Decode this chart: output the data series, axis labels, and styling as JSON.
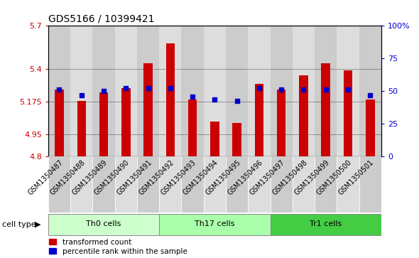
{
  "title": "GDS5166 / 10399421",
  "samples": [
    "GSM1350487",
    "GSM1350488",
    "GSM1350489",
    "GSM1350490",
    "GSM1350491",
    "GSM1350492",
    "GSM1350493",
    "GSM1350494",
    "GSM1350495",
    "GSM1350496",
    "GSM1350497",
    "GSM1350498",
    "GSM1350499",
    "GSM1350500",
    "GSM1350501"
  ],
  "bar_values": [
    5.26,
    5.18,
    5.24,
    5.27,
    5.44,
    5.58,
    5.19,
    5.04,
    5.03,
    5.3,
    5.26,
    5.36,
    5.44,
    5.39,
    5.19
  ],
  "blue_values": [
    5.26,
    5.22,
    5.25,
    5.27,
    5.27,
    5.27,
    5.21,
    5.19,
    5.18,
    5.27,
    5.26,
    5.26,
    5.26,
    5.26,
    5.22
  ],
  "groups": [
    {
      "label": "Th0 cells",
      "start": 0,
      "end": 5,
      "color": "#ccffcc"
    },
    {
      "label": "Th17 cells",
      "start": 5,
      "end": 10,
      "color": "#aaffaa"
    },
    {
      "label": "Tr1 cells",
      "start": 10,
      "end": 15,
      "color": "#44cc44"
    }
  ],
  "ymin": 4.8,
  "ymax": 5.7,
  "yticks": [
    4.8,
    4.95,
    5.175,
    5.4,
    5.7
  ],
  "bar_color": "#cc0000",
  "blue_color": "#0000cc",
  "col_bg_odd": "#cccccc",
  "col_bg_even": "#dddddd",
  "plot_bg": "#ffffff",
  "cell_type_label": "cell type",
  "legend_bar": "transformed count",
  "legend_blue": "percentile rank within the sample",
  "ylabel_left_color": "#cc0000",
  "ylabel_right_color": "#0000cc",
  "title_fontsize": 10,
  "tick_fontsize": 8,
  "label_fontsize": 7,
  "group_fontsize": 8
}
